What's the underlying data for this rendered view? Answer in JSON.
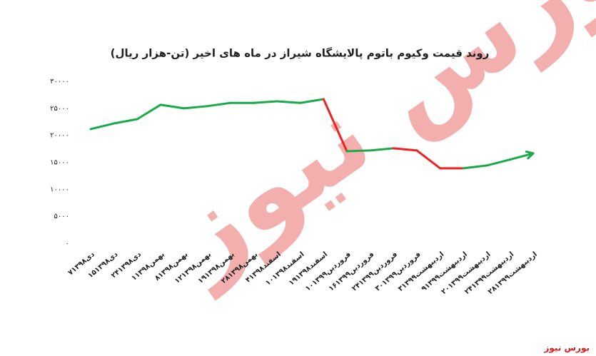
{
  "chart_data": {
    "type": "line",
    "title": "روند قیمت وکیوم باتوم پالایشگاه شیراز در ماه های اخیر (تن-هزار ریال)",
    "categories": [
      "۷دی۱۳۹۸",
      "۱۵دی۱۳۹۸",
      "۲۴دی۱۳۹۸",
      "۱بهمن۱۳۹۸",
      "۸بهمن۱۳۹۸",
      "۱۲بهمن۱۳۹۸",
      "۱۹بهمن۱۳۹۸",
      "۲۸بهمن۱۳۹۸",
      "۴اسفند۱۳۹۸",
      "۱۰اسفند۱۳۹۸",
      "۱۹اسفند۱۳۹۸",
      "۱۰فروردین۱۳۹۹",
      "۱۶فروردین۱۳۹۹",
      "۲۴فروردین۱۳۹۹",
      "۳۰فروردین۱۳۹۹",
      "۳اردیبهشت۱۳۹۹",
      "۹اردیبهشت۱۳۹۹",
      "۲۰اردیبهشت۱۳۹۹",
      "۲۴اردیبهشت۱۳۹۹",
      "۲۸اردیبهشت۱۳۹۹"
    ],
    "values": [
      21150,
      22200,
      23000,
      25650,
      25000,
      25400,
      26000,
      26000,
      26300,
      26000,
      26700,
      17050,
      17200,
      17600,
      17200,
      13900,
      13900,
      14400,
      15500,
      16650
    ],
    "segment_colors": [
      "#1aaa4a",
      "#1aaa4a",
      "#1aaa4a",
      "#1aaa4a",
      "#1aaa4a",
      "#1aaa4a",
      "#1aaa4a",
      "#1aaa4a",
      "#1aaa4a",
      "#1aaa4a",
      "#ee2222",
      "#1aaa4a",
      "#1aaa4a",
      "#ee2222",
      "#ee2222",
      "#ee2222",
      "#1aaa4a",
      "#1aaa4a",
      "#1aaa4a"
    ],
    "ylim": [
      0,
      30000
    ],
    "yticks": [
      {
        "value": 0,
        "label": "۰"
      },
      {
        "value": 5000,
        "label": "۵۰۰۰"
      },
      {
        "value": 10000,
        "label": "۱۰۰۰۰"
      },
      {
        "value": 15000,
        "label": "۱۵۰۰۰"
      },
      {
        "value": 20000,
        "label": "۲۰۰۰۰"
      },
      {
        "value": 25000,
        "label": "۲۵۰۰۰"
      },
      {
        "value": 30000,
        "label": "۳۰۰۰۰"
      }
    ],
    "grid": false,
    "arrow_end": true,
    "watermark": "بورس نیوز",
    "source": "بورس نیوز"
  }
}
